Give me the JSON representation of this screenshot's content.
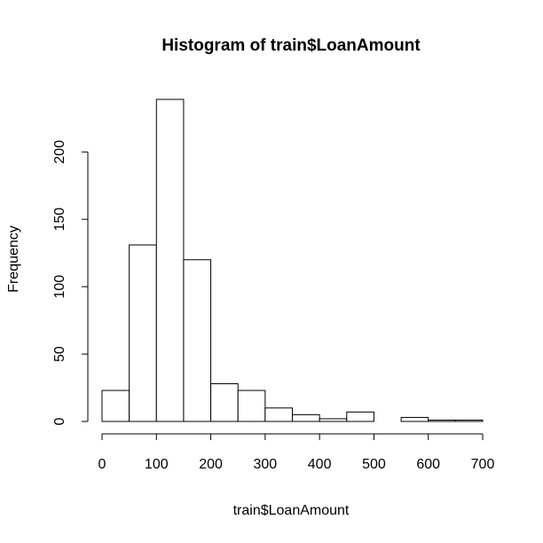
{
  "chart_data": {
    "type": "histogram",
    "title": "Histogram of train$LoanAmount",
    "x_label": "train$LoanAmount",
    "y_label": "Frequency",
    "bins": [
      0,
      50,
      100,
      150,
      200,
      250,
      300,
      350,
      400,
      450,
      500,
      550,
      600,
      650,
      700
    ],
    "counts": [
      23,
      131,
      239,
      120,
      28,
      23,
      10,
      5,
      2,
      7,
      0,
      3,
      1,
      1
    ],
    "color": "#ffffff",
    "edge_color": "#000000",
    "xlim": [
      0,
      700
    ],
    "xticks": [
      0,
      100,
      200,
      300,
      400,
      500,
      600,
      700
    ],
    "ylim": [
      0,
      239
    ],
    "yticks": [
      0,
      50,
      100,
      150,
      200
    ]
  }
}
